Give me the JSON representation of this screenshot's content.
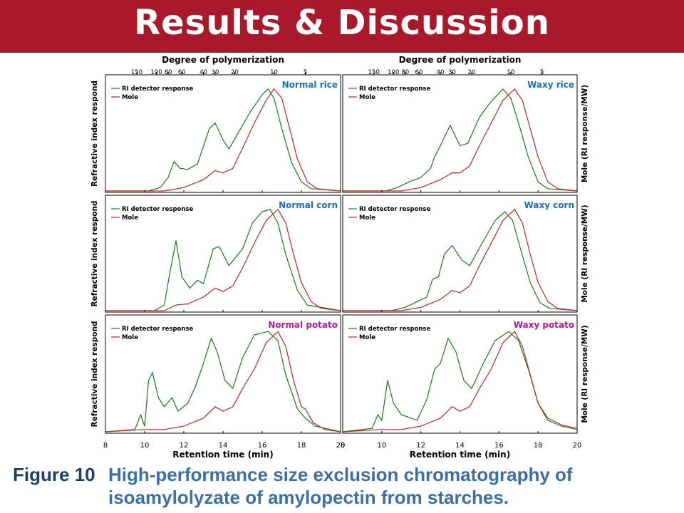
{
  "header": {
    "title": "Results & Discussion"
  },
  "figure": {
    "top_axis_title": "Degree of polymerization",
    "top_axis_ticks": [
      "150",
      "100",
      "80",
      "60",
      "40",
      "30",
      "20",
      "10",
      "5"
    ],
    "left_axis_label": "Refractive index respond",
    "right_axis_label": "Mole (RI response/MW)",
    "bottom_axis_title": "Retention time (min)",
    "bottom_axis_ticks_left": [
      "8",
      "10",
      "12",
      "14",
      "16",
      "18",
      "20"
    ],
    "bottom_axis_ticks_right": [
      "8",
      "10",
      "12",
      "14",
      "16",
      "18",
      "20"
    ],
    "legend": [
      {
        "label": "RI detector response",
        "color": "#1a7a1a"
      },
      {
        "label": "Mole",
        "color": "#cc2222"
      }
    ],
    "colors": {
      "blue_label": "#1b6fb5",
      "magenta_label": "#b0189a"
    }
  },
  "chart_data": [
    {
      "type": "line",
      "title": "Normal rice",
      "x_range": [
        8,
        20
      ]
    },
    {
      "type": "line",
      "title": "Waxy rice",
      "x_range": [
        8,
        20
      ]
    },
    {
      "type": "line",
      "title": "Normal corn",
      "x_range": [
        8,
        20
      ]
    },
    {
      "type": "line",
      "title": "Waxy corn",
      "x_range": [
        8,
        20
      ]
    },
    {
      "type": "line",
      "title": "Normal potato",
      "x_range": [
        8,
        20
      ]
    },
    {
      "type": "line",
      "title": "Waxy potato",
      "x_range": [
        8,
        20
      ]
    }
  ],
  "caption": {
    "label": "Figure 10",
    "text": "High-performance size exclusion chromatography of isoamylolyzate of amylopectin from starches."
  }
}
